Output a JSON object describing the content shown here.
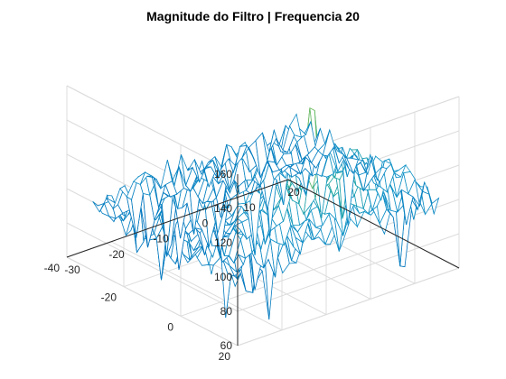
{
  "chart_data": {
    "type": "mesh",
    "title": "Magnitude do Filtro | Frequencia 20",
    "xlabel": "",
    "ylabel": "",
    "zlabel": "",
    "xlim": [
      -30,
      20
    ],
    "ylim": [
      -40,
      20
    ],
    "zlim": [
      60,
      160
    ],
    "xticks": [
      "-30",
      "-20",
      "-10",
      "0",
      "10",
      "20"
    ],
    "yticks": [
      "20",
      "0",
      "-20",
      "-40"
    ],
    "zticks": [
      "160",
      "140",
      "120",
      "100",
      "80",
      "60"
    ],
    "grid": true,
    "colormap": "parula",
    "surface": {
      "description_values": "noisy magnitude surface",
      "base_level": 96,
      "center_level": 122,
      "peak": {
        "x": 0,
        "y": 0,
        "z": 154
      },
      "min_dips": 63
    }
  },
  "colors": {
    "low": "#0072bd",
    "mid": "#21a89c",
    "high": "#e3c436",
    "axis": "#262626",
    "grid": "#dcdcdc"
  }
}
